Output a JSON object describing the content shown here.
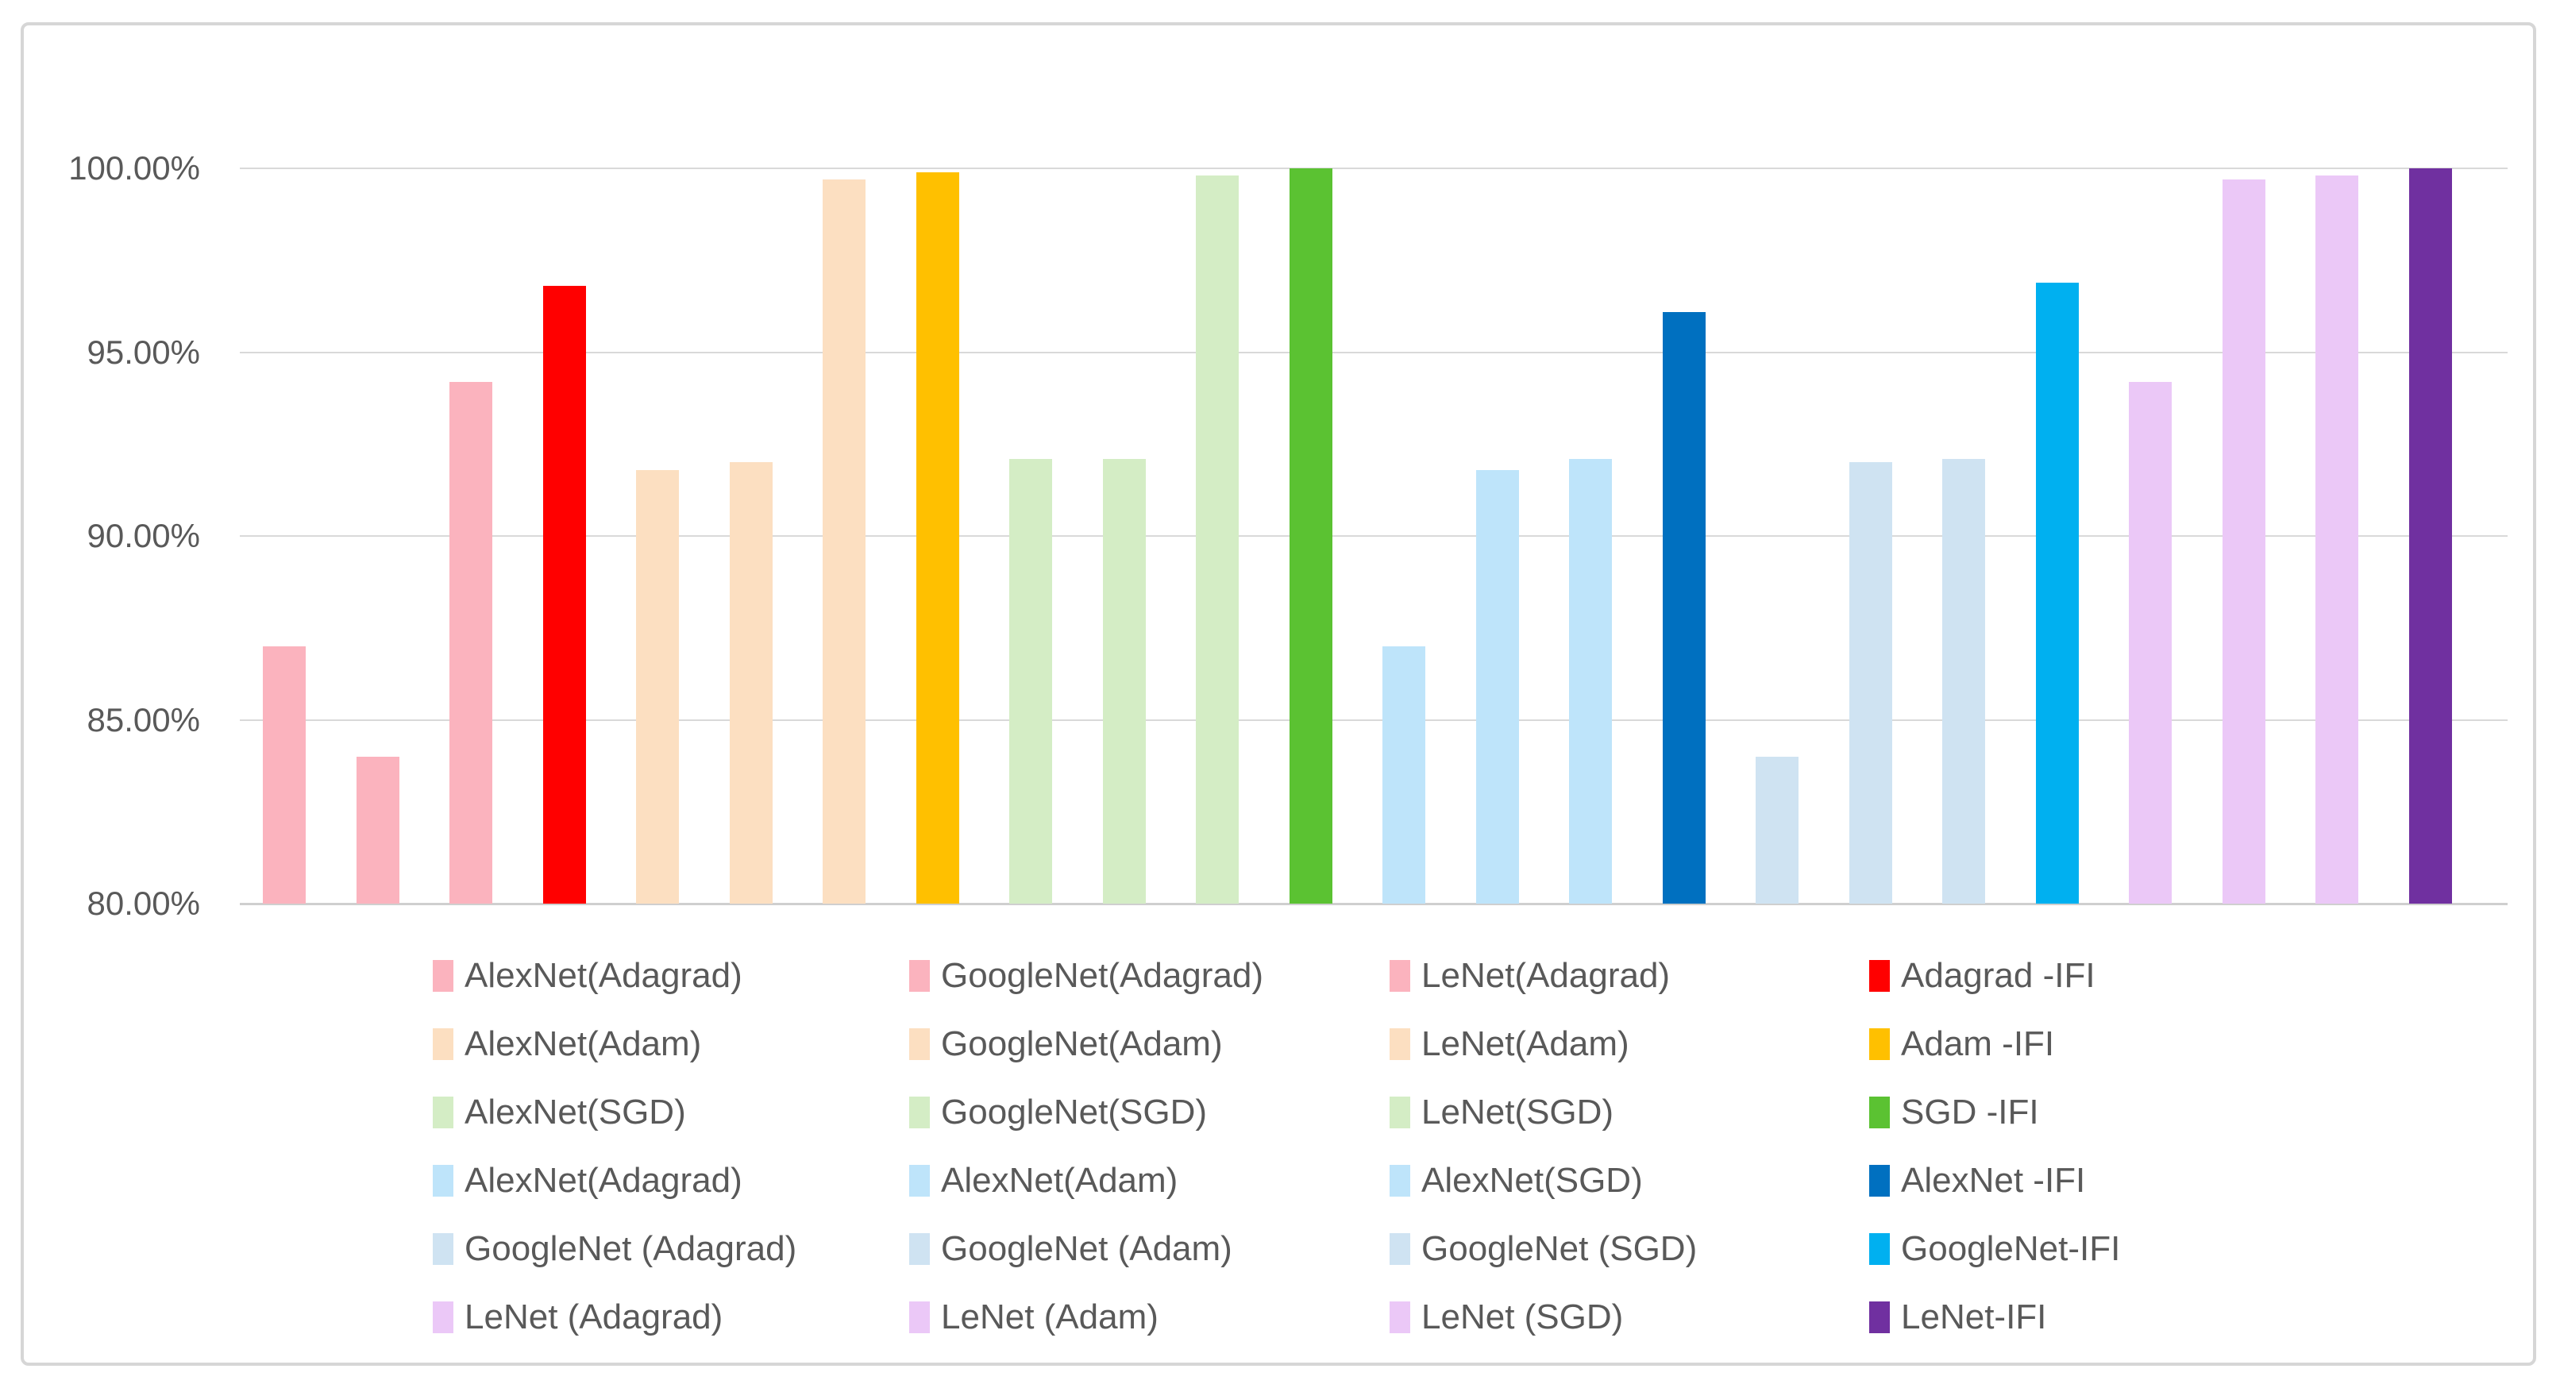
{
  "chart_data": {
    "type": "bar",
    "title": "",
    "xlabel": "",
    "ylabel": "",
    "unit": "%",
    "ylim": [
      80,
      100
    ],
    "grid": true,
    "legend_position": "bottom",
    "legend_columns": 4,
    "y_axis": {
      "ticks": [
        {
          "value": 100,
          "label": "100.00%"
        },
        {
          "value": 95,
          "label": "95.00%"
        },
        {
          "value": 90,
          "label": "90.00%"
        },
        {
          "value": 85,
          "label": "85.00%"
        },
        {
          "value": 80,
          "label": "80.00%"
        }
      ]
    },
    "series": [
      {
        "name": "AlexNet(Adagrad)",
        "value": 87.0,
        "color": "#FBB3BE"
      },
      {
        "name": "GoogleNet(Adagrad)",
        "value": 84.0,
        "color": "#FBB3BE"
      },
      {
        "name": "LeNet(Adagrad)",
        "value": 94.2,
        "color": "#FBB3BE"
      },
      {
        "name": "Adagrad -IFI",
        "value": 96.8,
        "color": "#FF0000"
      },
      {
        "name": "AlexNet(Adam)",
        "value": 91.8,
        "color": "#FCDFC1"
      },
      {
        "name": "GoogleNet(Adam)",
        "value": 92.0,
        "color": "#FCDFC1"
      },
      {
        "name": "LeNet(Adam)",
        "value": 99.7,
        "color": "#FCDFC1"
      },
      {
        "name": "Adam -IFI",
        "value": 99.9,
        "color": "#FFC000"
      },
      {
        "name": "AlexNet(SGD)",
        "value": 92.1,
        "color": "#D4EDC5"
      },
      {
        "name": "GoogleNet(SGD)",
        "value": 92.1,
        "color": "#D4EDC5"
      },
      {
        "name": "LeNet(SGD)",
        "value": 99.8,
        "color": "#D4EDC5"
      },
      {
        "name": "SGD -IFI",
        "value": 100.0,
        "color": "#5BC232"
      },
      {
        "name": "AlexNet(Adagrad)",
        "value": 87.0,
        "color": "#BEE4FA"
      },
      {
        "name": "AlexNet(Adam)",
        "value": 91.8,
        "color": "#BEE4FA"
      },
      {
        "name": "AlexNet(SGD)",
        "value": 92.1,
        "color": "#BEE4FA"
      },
      {
        "name": "AlexNet -IFI",
        "value": 96.1,
        "color": "#0070C0"
      },
      {
        "name": "GoogleNet (Adagrad)",
        "value": 84.0,
        "color": "#CFE3F2"
      },
      {
        "name": "GoogleNet (Adam)",
        "value": 92.0,
        "color": "#CFE3F2"
      },
      {
        "name": "GoogleNet (SGD)",
        "value": 92.1,
        "color": "#CFE3F2"
      },
      {
        "name": "GoogleNet-IFI",
        "value": 96.9,
        "color": "#00B0F0"
      },
      {
        "name": "LeNet (Adagrad)",
        "value": 94.2,
        "color": "#EBC8F7"
      },
      {
        "name": "LeNet (Adam)",
        "value": 99.7,
        "color": "#EBC8F7"
      },
      {
        "name": "LeNet (SGD)",
        "value": 99.8,
        "color": "#EBC8F7"
      },
      {
        "name": "LeNet-IFI",
        "value": 100.0,
        "color": "#7030A0"
      }
    ]
  },
  "style": {
    "gridline_color": "#D9D9D9",
    "axis_line_color": "#CFCFCF",
    "text_color": "#595959",
    "frame_border_color": "#D6D6D6",
    "background": "#FFFFFF"
  }
}
